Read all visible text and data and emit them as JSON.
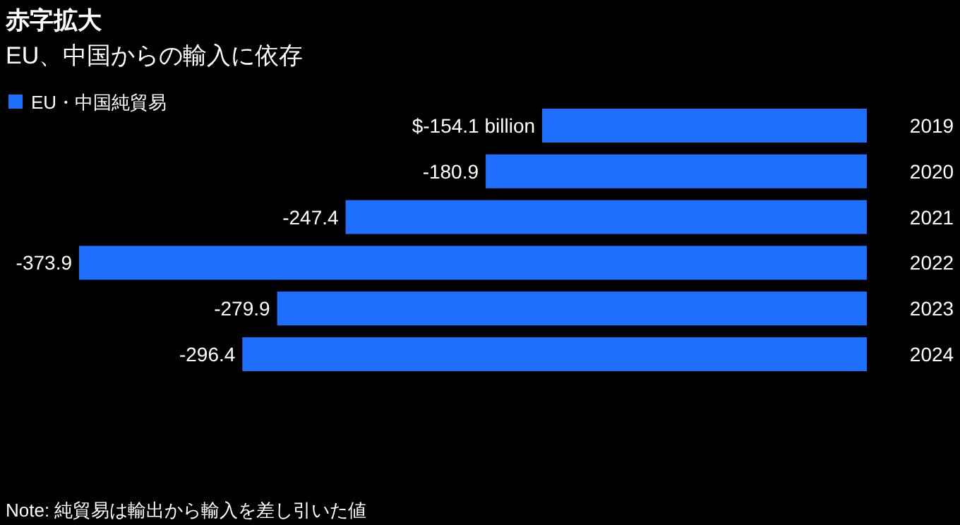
{
  "chart_data": {
    "type": "bar",
    "orientation": "horizontal",
    "title": "赤字拡大",
    "subtitle": "EU、中国からの輸入に依存",
    "categories": [
      "2019",
      "2020",
      "2021",
      "2022",
      "2023",
      "2024"
    ],
    "series": [
      {
        "name": "EU・中国純貿易",
        "color": "#1f6fff",
        "values": [
          -154.1,
          -180.9,
          -247.4,
          -373.9,
          -279.9,
          -296.4
        ],
        "value_labels": [
          "$-154.1 billion",
          "-180.9",
          "-247.4",
          "-373.9",
          "-279.9",
          "-296.4"
        ]
      }
    ],
    "legend": "top left",
    "annotations": [
      "Note: 純貿易は輸出から輸入を差し引いた値"
    ]
  }
}
